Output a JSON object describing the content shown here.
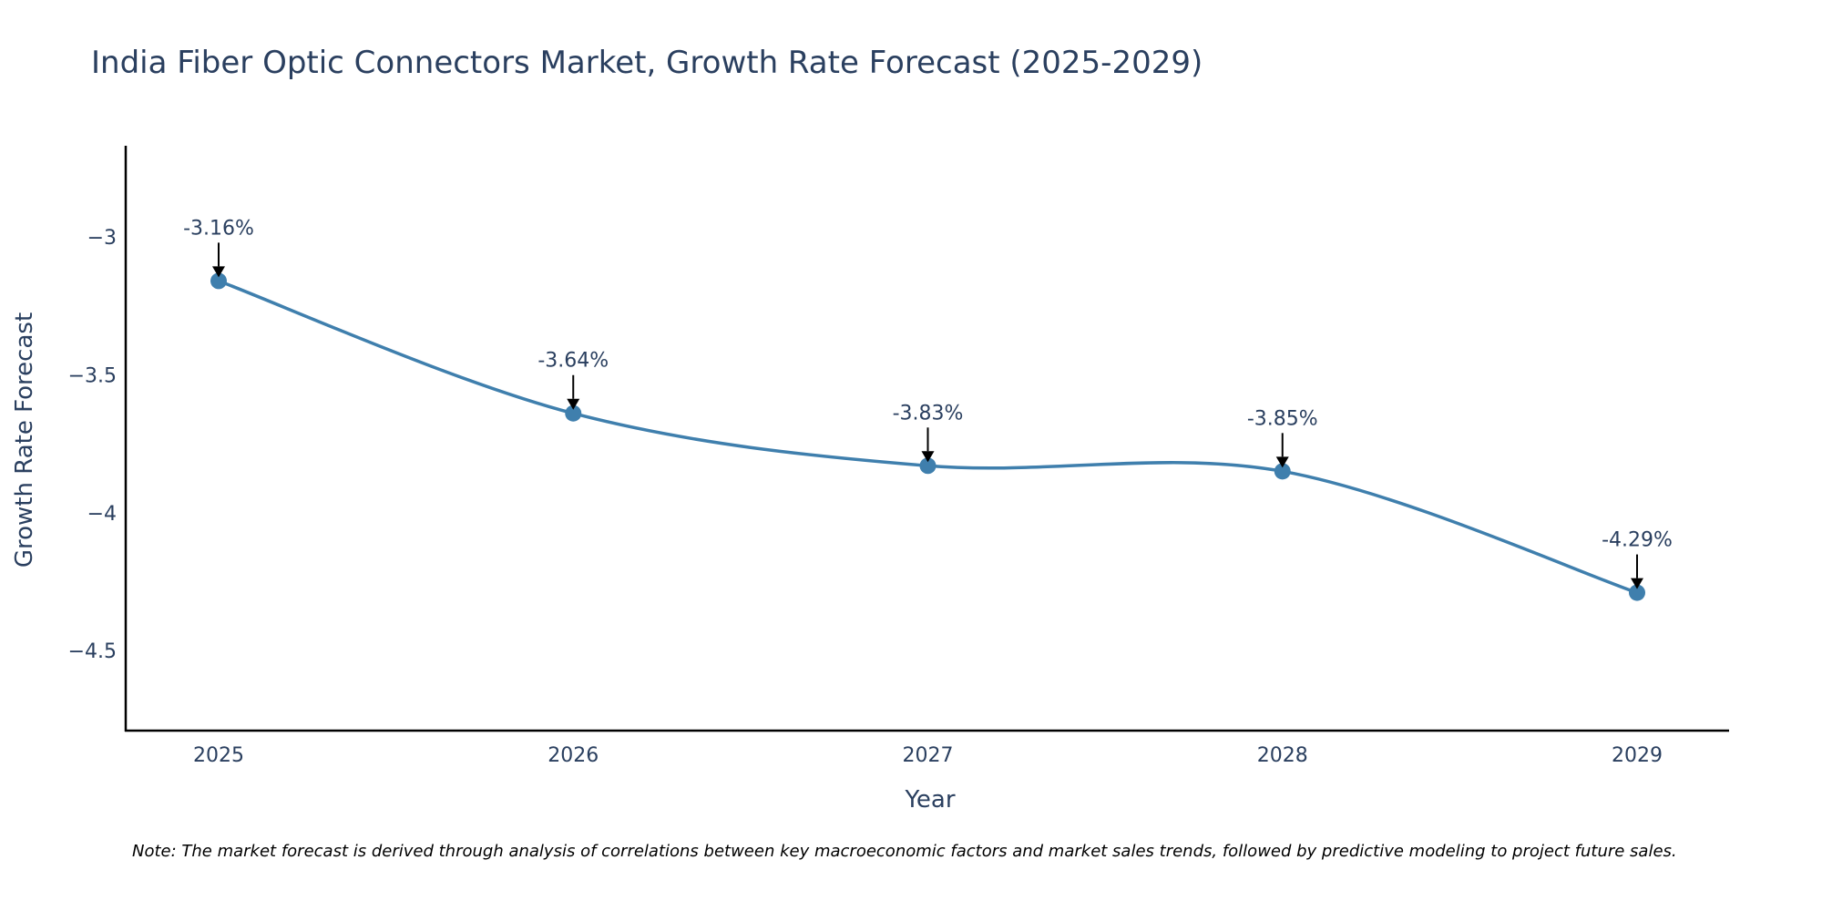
{
  "chart_data": {
    "type": "line",
    "title": "India Fiber Optic Connectors Market, Growth Rate Forecast (2025-2029)",
    "xlabel": "Year",
    "ylabel": "Growth Rate Forecast",
    "categories": [
      "2025",
      "2026",
      "2027",
      "2028",
      "2029"
    ],
    "values": [
      -3.16,
      -3.64,
      -3.83,
      -3.85,
      -4.29
    ],
    "data_labels": [
      "-3.16%",
      "-3.64%",
      "-3.83%",
      "-3.85%",
      "-4.29%"
    ],
    "ylim": [
      -4.79,
      -2.67
    ],
    "yticks": [
      -3,
      -3.5,
      -4,
      -4.5
    ],
    "ytick_labels": [
      "−3",
      "−3.5",
      "−4",
      "−4.5"
    ],
    "grid": false,
    "line_shape": "spline",
    "colors": {
      "line": "#3f7fad",
      "marker": "#3f7fad",
      "axis": "#000000",
      "text": "#2a3f5f"
    },
    "note": "Note: The market forecast is derived through analysis of correlations between key macroeconomic factors and market sales trends, followed by predictive modeling to project future sales."
  }
}
